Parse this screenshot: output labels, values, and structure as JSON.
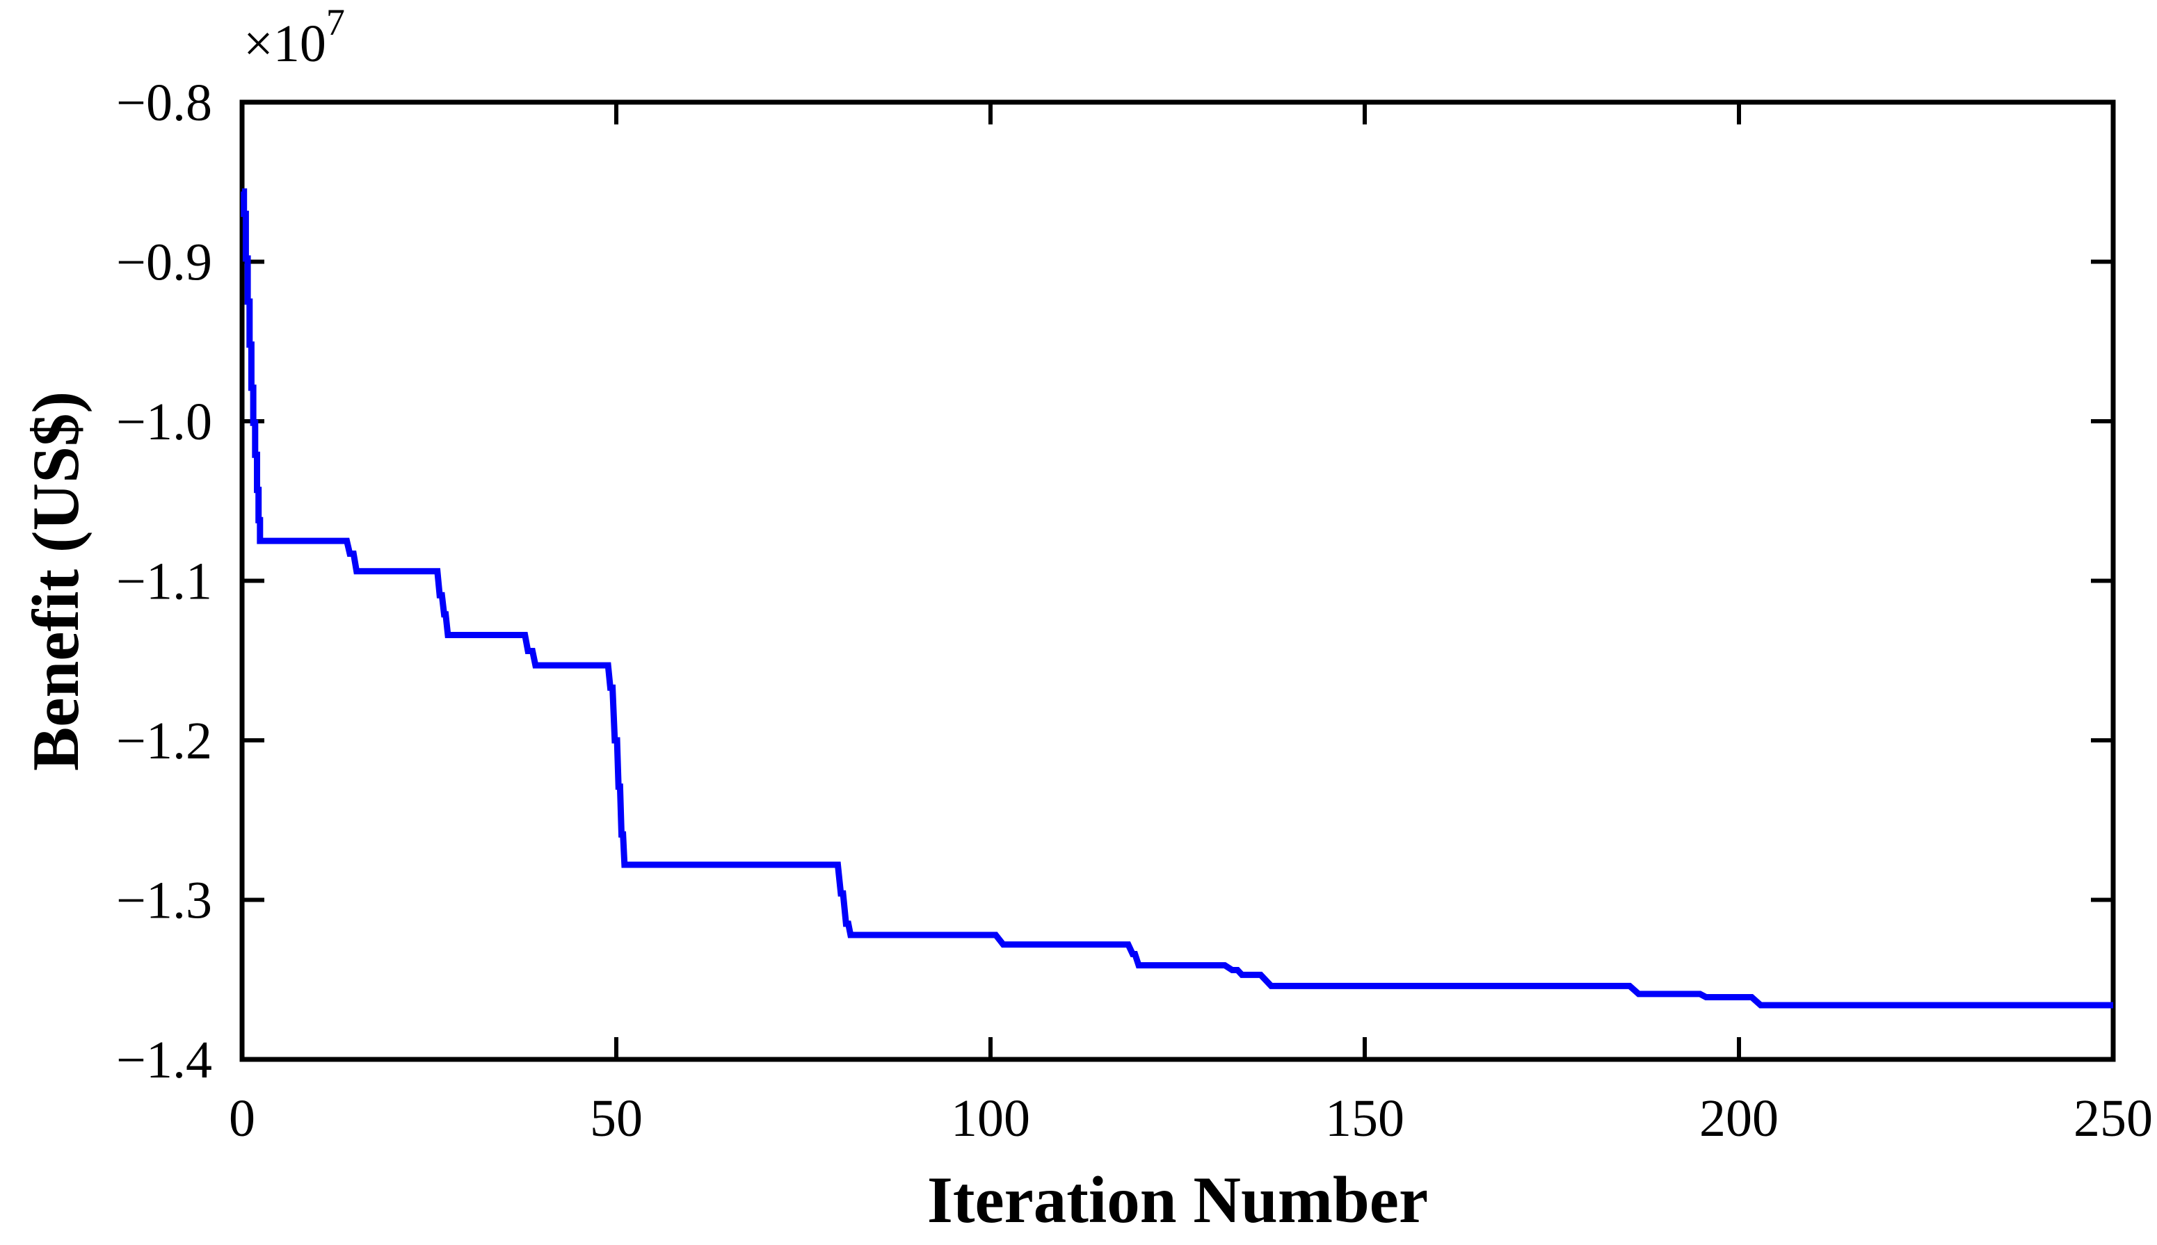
{
  "figure": {
    "background": "#ffffff"
  },
  "chart_data": {
    "type": "line",
    "title": "",
    "xlabel": "Iteration Number",
    "ylabel": "Benefit (US$)",
    "y_offset_label": {
      "base": "×10",
      "exponent": "7"
    },
    "xlim": [
      0,
      250
    ],
    "ylim": [
      -1.4,
      -0.8
    ],
    "grid": false,
    "legend": "none",
    "axis_color": "#000000",
    "x_ticks": {
      "values": [
        0,
        50,
        100,
        150,
        200,
        250
      ],
      "labels": [
        "0",
        "50",
        "100",
        "150",
        "200",
        "250"
      ]
    },
    "y_ticks": {
      "values": [
        -0.8,
        -0.9,
        -1.0,
        -1.1,
        -1.2,
        -1.3,
        -1.4
      ],
      "labels": [
        "−0.8",
        "−0.9",
        "−1.0",
        "−1.1",
        "−1.2",
        "−1.3",
        "−1.4"
      ]
    },
    "series": [
      {
        "name": "benefit-convergence",
        "color": "#0000fb",
        "points": [
          [
            0,
            -0.856
          ],
          [
            0.25,
            -0.856
          ],
          [
            0.25,
            -0.87
          ],
          [
            0.5,
            -0.87
          ],
          [
            0.5,
            -0.898
          ],
          [
            0.75,
            -0.898
          ],
          [
            0.75,
            -0.925
          ],
          [
            1.0,
            -0.925
          ],
          [
            1.0,
            -0.952
          ],
          [
            1.25,
            -0.952
          ],
          [
            1.25,
            -0.979
          ],
          [
            1.5,
            -0.979
          ],
          [
            1.5,
            -1.001
          ],
          [
            1.75,
            -1.001
          ],
          [
            1.75,
            -1.021
          ],
          [
            2.0,
            -1.021
          ],
          [
            2.0,
            -1.043
          ],
          [
            2.2,
            -1.043
          ],
          [
            2.2,
            -1.062
          ],
          [
            2.4,
            -1.062
          ],
          [
            2.4,
            -1.075
          ],
          [
            14.0,
            -1.075
          ],
          [
            14.4,
            -1.083
          ],
          [
            14.9,
            -1.083
          ],
          [
            15.3,
            -1.094
          ],
          [
            26.1,
            -1.094
          ],
          [
            26.4,
            -1.109
          ],
          [
            26.7,
            -1.109
          ],
          [
            27.0,
            -1.121
          ],
          [
            27.2,
            -1.121
          ],
          [
            27.5,
            -1.134
          ],
          [
            37.8,
            -1.134
          ],
          [
            38.2,
            -1.144
          ],
          [
            38.8,
            -1.144
          ],
          [
            39.2,
            -1.153
          ],
          [
            48.9,
            -1.153
          ],
          [
            49.2,
            -1.167
          ],
          [
            49.5,
            -1.167
          ],
          [
            49.8,
            -1.2
          ],
          [
            50.1,
            -1.2
          ],
          [
            50.3,
            -1.229
          ],
          [
            50.5,
            -1.229
          ],
          [
            50.7,
            -1.259
          ],
          [
            50.9,
            -1.259
          ],
          [
            51.1,
            -1.278
          ],
          [
            79.6,
            -1.278
          ],
          [
            80.0,
            -1.296
          ],
          [
            80.3,
            -1.296
          ],
          [
            80.7,
            -1.315
          ],
          [
            81.0,
            -1.315
          ],
          [
            81.3,
            -1.322
          ],
          [
            100.7,
            -1.322
          ],
          [
            101.7,
            -1.328
          ],
          [
            118.4,
            -1.328
          ],
          [
            119.0,
            -1.334
          ],
          [
            119.3,
            -1.334
          ],
          [
            119.8,
            -1.341
          ],
          [
            131.3,
            -1.341
          ],
          [
            132.3,
            -1.344
          ],
          [
            133.0,
            -1.344
          ],
          [
            133.6,
            -1.347
          ],
          [
            136.1,
            -1.347
          ],
          [
            137.5,
            -1.354
          ],
          [
            185.4,
            -1.354
          ],
          [
            186.6,
            -1.359
          ],
          [
            194.8,
            -1.359
          ],
          [
            195.6,
            -1.361
          ],
          [
            201.7,
            -1.361
          ],
          [
            202.9,
            -1.366
          ],
          [
            250,
            -1.366
          ]
        ]
      }
    ]
  }
}
